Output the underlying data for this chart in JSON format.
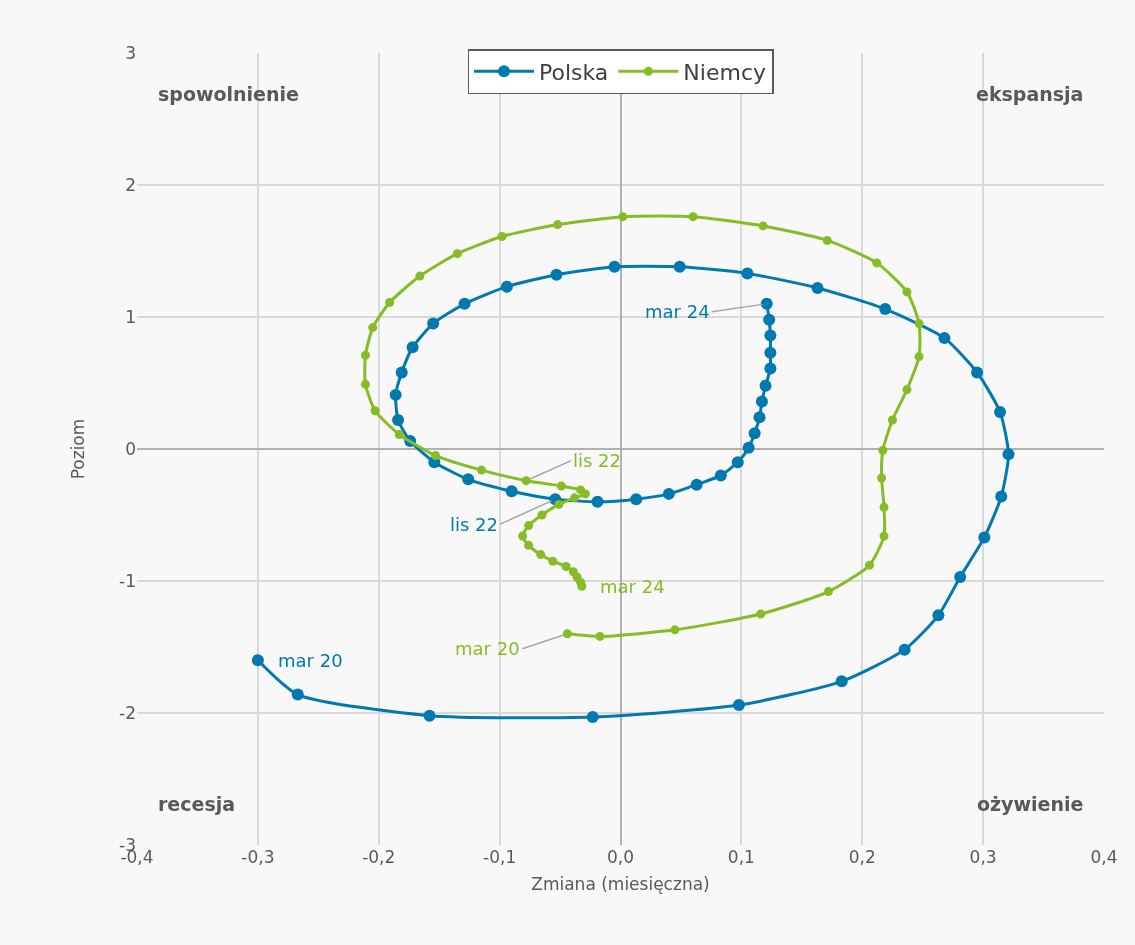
{
  "chart_data": {
    "type": "line",
    "xlabel": "Zmiana (miesięczna)",
    "ylabel": "Poziom",
    "xlim": [
      -0.4,
      0.4
    ],
    "ylim": [
      -3,
      3
    ],
    "xticks": [
      {
        "value": -0.4,
        "label": "-0,4"
      },
      {
        "value": -0.3,
        "label": "-0,3"
      },
      {
        "value": -0.2,
        "label": "-0,2"
      },
      {
        "value": -0.1,
        "label": "-0,1"
      },
      {
        "value": 0,
        "label": "0,0"
      },
      {
        "value": 0.1,
        "label": "0,1"
      },
      {
        "value": 0.2,
        "label": "0,2"
      },
      {
        "value": 0.3,
        "label": "0,3"
      },
      {
        "value": 0.4,
        "label": "0,4"
      }
    ],
    "yticks": [
      -3,
      -2,
      -1,
      0,
      1,
      2,
      3
    ],
    "grid": true,
    "legend": "top",
    "marker": "circle",
    "line_style": "solid",
    "series": [
      {
        "name": "Polska",
        "color": "#0079b0",
        "x": [
          -0.3,
          -0.267,
          -0.158,
          -0.023,
          0.098,
          0.183,
          0.235,
          0.263,
          0.281,
          0.301,
          0.315,
          0.321,
          0.314,
          0.295,
          0.268,
          0.219,
          0.163,
          0.105,
          0.049,
          -0.005,
          -0.053,
          -0.094,
          -0.129,
          -0.155,
          -0.172,
          -0.181,
          -0.186,
          -0.184,
          -0.174,
          -0.154,
          -0.126,
          -0.09,
          -0.054,
          -0.019,
          0.013,
          0.04,
          0.063,
          0.083,
          0.097,
          0.106,
          0.111,
          0.115,
          0.117,
          0.12,
          0.124,
          0.124,
          0.124,
          0.123,
          0.121
        ],
        "values": [
          -1.6,
          -1.86,
          -2.02,
          -2.03,
          -1.94,
          -1.76,
          -1.52,
          -1.26,
          -0.97,
          -0.67,
          -0.36,
          -0.04,
          0.28,
          0.58,
          0.84,
          1.06,
          1.22,
          1.33,
          1.38,
          1.38,
          1.32,
          1.23,
          1.1,
          0.95,
          0.77,
          0.58,
          0.41,
          0.22,
          0.06,
          -0.1,
          -0.23,
          -0.32,
          -0.38,
          -0.4,
          -0.38,
          -0.34,
          -0.27,
          -0.2,
          -0.1,
          0.01,
          0.12,
          0.24,
          0.36,
          0.48,
          0.61,
          0.73,
          0.86,
          0.98,
          1.1
        ]
      },
      {
        "name": "Niemcy",
        "color": "#86bc25",
        "x": [
          -0.044,
          -0.017,
          0.045,
          0.116,
          0.172,
          0.206,
          0.218,
          0.218,
          0.216,
          0.217,
          0.225,
          0.237,
          0.247,
          0.247,
          0.237,
          0.212,
          0.171,
          0.118,
          0.06,
          0.002,
          -0.052,
          -0.098,
          -0.135,
          -0.166,
          -0.191,
          -0.205,
          -0.211,
          -0.211,
          -0.203,
          -0.183,
          -0.153,
          -0.115,
          -0.078,
          -0.049,
          -0.033,
          -0.029,
          -0.038,
          -0.051,
          -0.065,
          -0.076,
          -0.081,
          -0.076,
          -0.066,
          -0.056,
          -0.045,
          -0.039,
          -0.036,
          -0.033,
          -0.032
        ],
        "values": [
          -1.4,
          -1.42,
          -1.37,
          -1.25,
          -1.08,
          -0.88,
          -0.66,
          -0.44,
          -0.22,
          -0.01,
          0.22,
          0.45,
          0.7,
          0.95,
          1.19,
          1.41,
          1.58,
          1.69,
          1.76,
          1.76,
          1.7,
          1.61,
          1.48,
          1.31,
          1.11,
          0.92,
          0.71,
          0.49,
          0.29,
          0.11,
          -0.05,
          -0.16,
          -0.24,
          -0.28,
          -0.31,
          -0.34,
          -0.37,
          -0.42,
          -0.5,
          -0.58,
          -0.66,
          -0.73,
          -0.8,
          -0.85,
          -0.89,
          -0.93,
          -0.97,
          -1.01,
          -1.04
        ]
      }
    ],
    "annotations": [
      "spowolnienie",
      "ekspansja",
      "recesja",
      "ożywienie",
      {
        "text": "mar 20",
        "x": -0.3,
        "y": -1.6
      },
      {
        "text": "lis 22",
        "x": -0.054,
        "y": -0.38
      },
      {
        "text": "mar 24",
        "x": 0.121,
        "y": 1.1
      },
      {
        "text": "mar 20",
        "x": -0.044,
        "y": -1.4
      },
      {
        "text": "lis 22",
        "x": -0.078,
        "y": -0.24
      },
      {
        "text": "mar 24",
        "x": -0.032,
        "y": -1.04
      }
    ]
  }
}
